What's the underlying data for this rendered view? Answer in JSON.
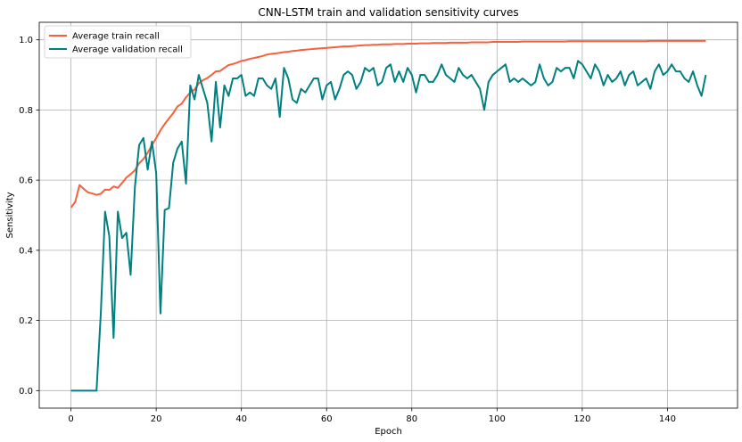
{
  "chart_data": {
    "type": "line",
    "title": "CNN-LSTM train and validation sensitivity curves",
    "xlabel": "Epoch",
    "ylabel": "Sensitivity",
    "xlim": [
      -7.45,
      156.45
    ],
    "ylim": [
      -0.05,
      1.05
    ],
    "xticks": [
      0,
      20,
      40,
      60,
      80,
      100,
      120,
      140
    ],
    "yticks": [
      0.0,
      0.2,
      0.4,
      0.6,
      0.8,
      1.0
    ],
    "xtick_labels": [
      "0",
      "20",
      "40",
      "60",
      "80",
      "100",
      "120",
      "140"
    ],
    "ytick_labels": [
      "0.0",
      "0.2",
      "0.4",
      "0.6",
      "0.8",
      "1.0"
    ],
    "grid": true,
    "legend_position": "top-left",
    "series": [
      {
        "name": "Average train recall",
        "color": "#f5613d",
        "x": [
          0,
          1,
          2,
          3,
          4,
          5,
          6,
          7,
          8,
          9,
          10,
          11,
          12,
          13,
          14,
          15,
          16,
          17,
          18,
          19,
          20,
          21,
          22,
          23,
          24,
          25,
          26,
          27,
          28,
          29,
          30,
          31,
          32,
          33,
          34,
          35,
          36,
          37,
          38,
          39,
          40,
          41,
          42,
          43,
          44,
          45,
          46,
          47,
          48,
          49,
          50,
          51,
          52,
          53,
          54,
          55,
          56,
          57,
          58,
          59,
          60,
          61,
          62,
          63,
          64,
          65,
          66,
          67,
          68,
          69,
          70,
          71,
          72,
          73,
          74,
          75,
          76,
          77,
          78,
          79,
          80,
          81,
          82,
          83,
          84,
          85,
          86,
          87,
          88,
          89,
          90,
          91,
          92,
          93,
          94,
          95,
          96,
          97,
          98,
          99,
          100,
          101,
          102,
          103,
          104,
          105,
          106,
          107,
          108,
          109,
          110,
          111,
          112,
          113,
          114,
          115,
          116,
          117,
          118,
          119,
          120,
          121,
          122,
          123,
          124,
          125,
          126,
          127,
          128,
          129,
          130,
          131,
          132,
          133,
          134,
          135,
          136,
          137,
          138,
          139,
          140,
          141,
          142,
          143,
          144,
          145,
          146,
          147,
          148,
          149
        ],
        "values": [
          0.522,
          0.538,
          0.586,
          0.575,
          0.565,
          0.562,
          0.558,
          0.561,
          0.573,
          0.572,
          0.582,
          0.578,
          0.592,
          0.607,
          0.617,
          0.628,
          0.648,
          0.66,
          0.678,
          0.7,
          0.72,
          0.742,
          0.76,
          0.776,
          0.791,
          0.81,
          0.818,
          0.836,
          0.85,
          0.858,
          0.876,
          0.885,
          0.891,
          0.9,
          0.91,
          0.911,
          0.92,
          0.928,
          0.931,
          0.935,
          0.94,
          0.942,
          0.946,
          0.948,
          0.951,
          0.954,
          0.958,
          0.96,
          0.961,
          0.963,
          0.965,
          0.966,
          0.968,
          0.969,
          0.971,
          0.972,
          0.973,
          0.974,
          0.975,
          0.976,
          0.977,
          0.978,
          0.979,
          0.98,
          0.981,
          0.981,
          0.982,
          0.983,
          0.984,
          0.985,
          0.985,
          0.986,
          0.986,
          0.987,
          0.987,
          0.987,
          0.988,
          0.988,
          0.988,
          0.989,
          0.989,
          0.989,
          0.99,
          0.99,
          0.99,
          0.991,
          0.991,
          0.991,
          0.991,
          0.992,
          0.992,
          0.992,
          0.992,
          0.992,
          0.993,
          0.993,
          0.993,
          0.993,
          0.993,
          0.994,
          0.994,
          0.994,
          0.994,
          0.994,
          0.994,
          0.994,
          0.995,
          0.995,
          0.995,
          0.995,
          0.995,
          0.995,
          0.995,
          0.995,
          0.995,
          0.995,
          0.995,
          0.996,
          0.996,
          0.996,
          0.996,
          0.996,
          0.996,
          0.996,
          0.996,
          0.996,
          0.996,
          0.996,
          0.996,
          0.996,
          0.996,
          0.996,
          0.996,
          0.996,
          0.996,
          0.996,
          0.997,
          0.997,
          0.997,
          0.997,
          0.997,
          0.997,
          0.997,
          0.997,
          0.997,
          0.997,
          0.997,
          0.997,
          0.997,
          0.997
        ]
      },
      {
        "name": "Average validation recall",
        "color": "#008080",
        "x": [
          0,
          1,
          2,
          3,
          4,
          5,
          6,
          7,
          8,
          9,
          10,
          11,
          12,
          13,
          14,
          15,
          16,
          17,
          18,
          19,
          20,
          21,
          22,
          23,
          24,
          25,
          26,
          27,
          28,
          29,
          30,
          31,
          32,
          33,
          34,
          35,
          36,
          37,
          38,
          39,
          40,
          41,
          42,
          43,
          44,
          45,
          46,
          47,
          48,
          49,
          50,
          51,
          52,
          53,
          54,
          55,
          56,
          57,
          58,
          59,
          60,
          61,
          62,
          63,
          64,
          65,
          66,
          67,
          68,
          69,
          70,
          71,
          72,
          73,
          74,
          75,
          76,
          77,
          78,
          79,
          80,
          81,
          82,
          83,
          84,
          85,
          86,
          87,
          88,
          89,
          90,
          91,
          92,
          93,
          94,
          95,
          96,
          97,
          98,
          99,
          100,
          101,
          102,
          103,
          104,
          105,
          106,
          107,
          108,
          109,
          110,
          111,
          112,
          113,
          114,
          115,
          116,
          117,
          118,
          119,
          120,
          121,
          122,
          123,
          124,
          125,
          126,
          127,
          128,
          129,
          130,
          131,
          132,
          133,
          134,
          135,
          136,
          137,
          138,
          139,
          140,
          141,
          142,
          143,
          144,
          145,
          146,
          147,
          148,
          149
        ],
        "values": [
          0.0,
          0.0,
          0.0,
          0.0,
          0.0,
          0.0,
          0.0,
          0.22,
          0.51,
          0.44,
          0.15,
          0.51,
          0.435,
          0.45,
          0.33,
          0.58,
          0.7,
          0.72,
          0.63,
          0.71,
          0.62,
          0.22,
          0.515,
          0.52,
          0.65,
          0.69,
          0.71,
          0.59,
          0.87,
          0.83,
          0.9,
          0.86,
          0.82,
          0.71,
          0.88,
          0.75,
          0.87,
          0.84,
          0.89,
          0.89,
          0.9,
          0.84,
          0.85,
          0.84,
          0.89,
          0.89,
          0.87,
          0.86,
          0.89,
          0.78,
          0.92,
          0.89,
          0.83,
          0.82,
          0.86,
          0.85,
          0.87,
          0.89,
          0.89,
          0.83,
          0.87,
          0.88,
          0.83,
          0.86,
          0.9,
          0.91,
          0.9,
          0.86,
          0.88,
          0.92,
          0.91,
          0.92,
          0.87,
          0.88,
          0.92,
          0.93,
          0.88,
          0.91,
          0.88,
          0.92,
          0.9,
          0.85,
          0.9,
          0.9,
          0.88,
          0.88,
          0.9,
          0.93,
          0.9,
          0.89,
          0.88,
          0.92,
          0.9,
          0.89,
          0.9,
          0.88,
          0.86,
          0.8,
          0.88,
          0.9,
          0.91,
          0.92,
          0.93,
          0.88,
          0.89,
          0.88,
          0.89,
          0.88,
          0.87,
          0.88,
          0.93,
          0.89,
          0.87,
          0.88,
          0.92,
          0.91,
          0.92,
          0.92,
          0.89,
          0.94,
          0.93,
          0.91,
          0.89,
          0.93,
          0.91,
          0.87,
          0.9,
          0.88,
          0.89,
          0.91,
          0.87,
          0.9,
          0.91,
          0.87,
          0.88,
          0.89,
          0.86,
          0.91,
          0.93,
          0.9,
          0.91,
          0.93,
          0.91,
          0.91,
          0.89,
          0.88,
          0.91,
          0.87,
          0.84,
          0.9
        ]
      }
    ]
  }
}
